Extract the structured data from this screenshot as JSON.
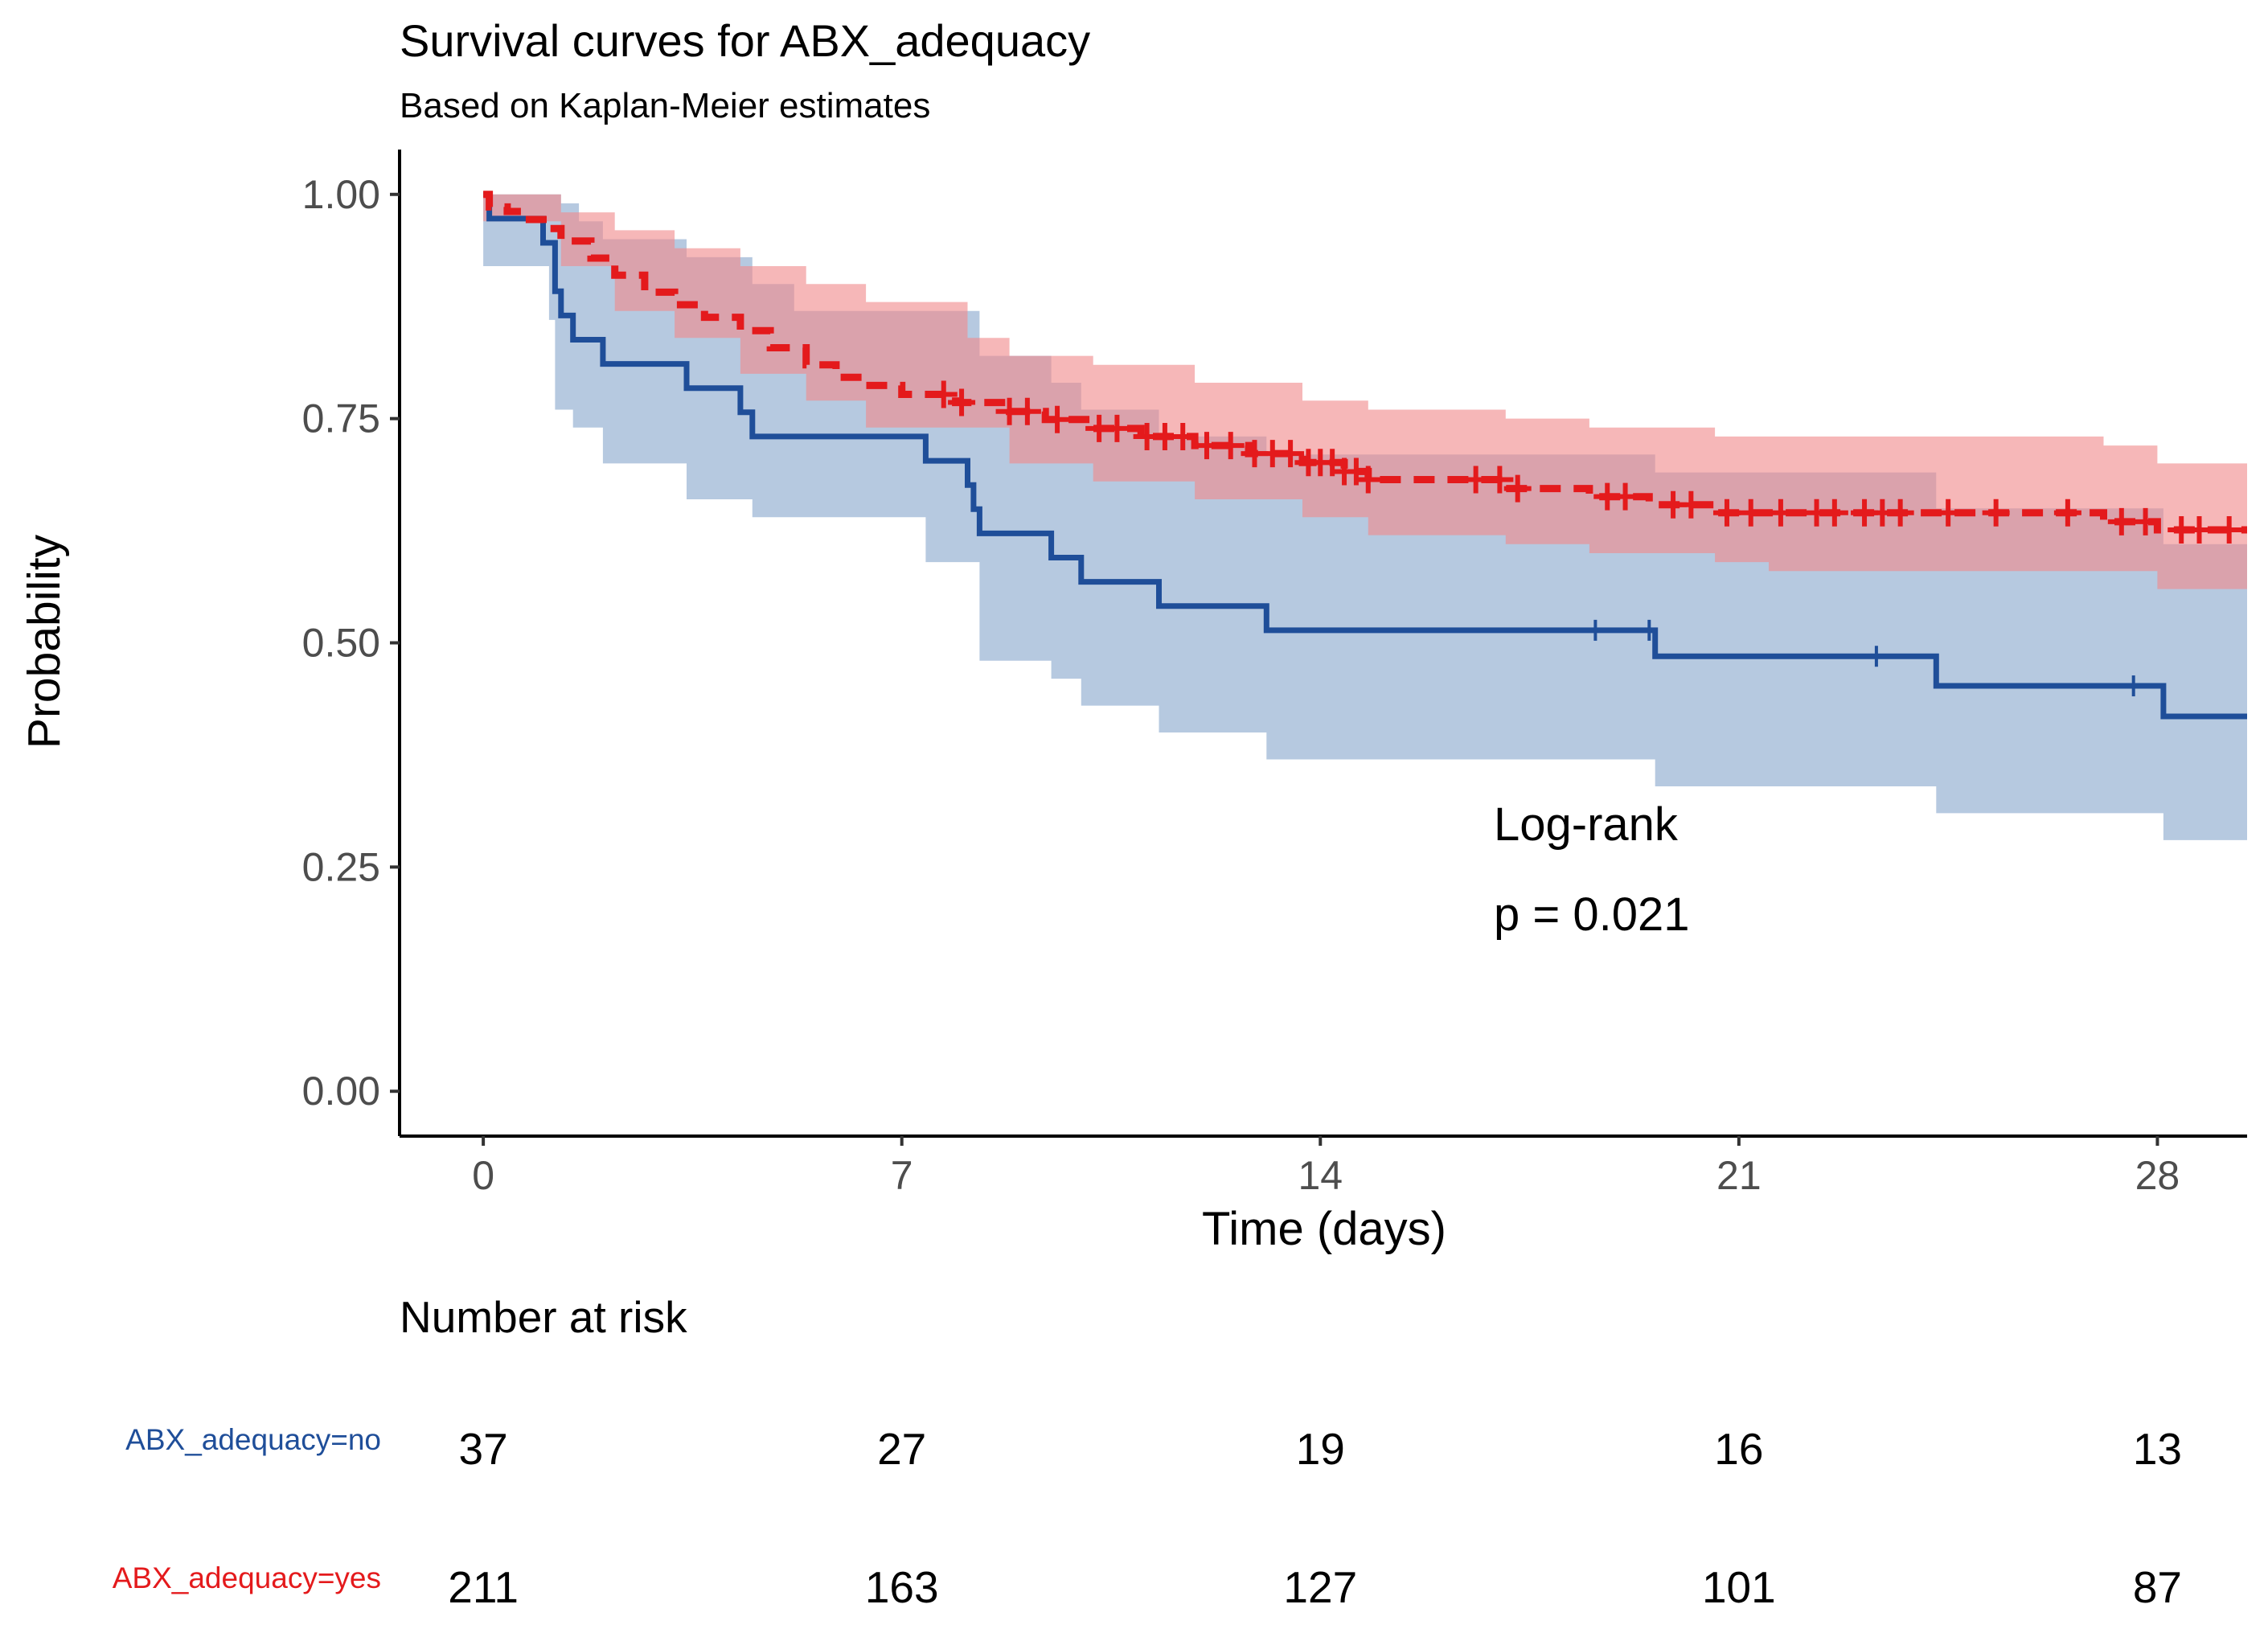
{
  "chart_data": {
    "type": "line",
    "title": "Survival curves for ABX_adequacy",
    "subtitle": "Based on Kaplan-Meier estimates",
    "xlabel": "Time (days)",
    "ylabel": "Probability",
    "xlim": [
      -1.4,
      29.5
    ],
    "ylim": [
      -0.05,
      1.05
    ],
    "xticks": [
      0,
      7,
      14,
      21,
      28
    ],
    "yticks": [
      0.0,
      0.25,
      0.5,
      0.75,
      1.0
    ],
    "xtick_labels": [
      "0",
      "7",
      "14",
      "21",
      "28"
    ],
    "ytick_labels": [
      "0.00",
      "0.25",
      "0.50",
      "0.75",
      "1.00"
    ],
    "annotation": {
      "line1": "Log-rank",
      "line2": "p = 0.021"
    },
    "series": [
      {
        "name": "ABX_adequacy=no",
        "color": "#1F4E99",
        "band_color": "#A9BFDB",
        "dash": false,
        "steps": [
          [
            0,
            1.0
          ],
          [
            0.1,
            0.973
          ],
          [
            0.4,
            0.973
          ],
          [
            1.0,
            0.946
          ],
          [
            1.2,
            0.892
          ],
          [
            1.3,
            0.865
          ],
          [
            1.5,
            0.838
          ],
          [
            2.0,
            0.811
          ],
          [
            3.4,
            0.784
          ],
          [
            4.3,
            0.757
          ],
          [
            4.5,
            0.73
          ],
          [
            7.4,
            0.703
          ],
          [
            8.1,
            0.676
          ],
          [
            8.2,
            0.649
          ],
          [
            8.3,
            0.622
          ],
          [
            9.5,
            0.595
          ],
          [
            10.0,
            0.568
          ],
          [
            11.3,
            0.541
          ],
          [
            13.1,
            0.514
          ],
          [
            19.6,
            0.485
          ],
          [
            24.3,
            0.452
          ],
          [
            28.1,
            0.418
          ],
          [
            29.5,
            0.418
          ]
        ],
        "lower": [
          [
            0,
            0.92
          ],
          [
            1.1,
            0.86
          ],
          [
            1.2,
            0.76
          ],
          [
            1.5,
            0.74
          ],
          [
            2.0,
            0.7
          ],
          [
            3.4,
            0.66
          ],
          [
            4.5,
            0.64
          ],
          [
            7.4,
            0.59
          ],
          [
            8.3,
            0.48
          ],
          [
            9.5,
            0.46
          ],
          [
            10.0,
            0.43
          ],
          [
            11.3,
            0.4
          ],
          [
            13.1,
            0.37
          ],
          [
            19.6,
            0.34
          ],
          [
            24.3,
            0.31
          ],
          [
            28.1,
            0.28
          ],
          [
            29.5,
            0.28
          ]
        ],
        "upper": [
          [
            0,
            1.0
          ],
          [
            1.3,
            0.99
          ],
          [
            1.6,
            0.97
          ],
          [
            2.0,
            0.95
          ],
          [
            3.4,
            0.93
          ],
          [
            4.5,
            0.9
          ],
          [
            5.2,
            0.87
          ],
          [
            7.4,
            0.87
          ],
          [
            8.3,
            0.82
          ],
          [
            9.5,
            0.79
          ],
          [
            10.0,
            0.76
          ],
          [
            11.3,
            0.73
          ],
          [
            13.1,
            0.71
          ],
          [
            19.6,
            0.69
          ],
          [
            24.3,
            0.65
          ],
          [
            28.1,
            0.61
          ],
          [
            29.5,
            0.61
          ]
        ],
        "censor_marks": [
          18.6,
          19.5,
          23.3,
          27.6
        ]
      },
      {
        "name": "ABX_adequacy=yes",
        "color": "#E41A1C",
        "band_color": "#F08A8C",
        "dash": true,
        "steps": [
          [
            0,
            1.0
          ],
          [
            0.1,
            0.986
          ],
          [
            0.4,
            0.981
          ],
          [
            0.7,
            0.972
          ],
          [
            1.0,
            0.962
          ],
          [
            1.3,
            0.948
          ],
          [
            1.8,
            0.929
          ],
          [
            2.2,
            0.91
          ],
          [
            2.7,
            0.891
          ],
          [
            3.2,
            0.877
          ],
          [
            3.7,
            0.863
          ],
          [
            4.3,
            0.848
          ],
          [
            4.8,
            0.829
          ],
          [
            5.4,
            0.81
          ],
          [
            5.9,
            0.796
          ],
          [
            6.4,
            0.787
          ],
          [
            7.0,
            0.777
          ],
          [
            7.9,
            0.768
          ],
          [
            8.8,
            0.758
          ],
          [
            9.4,
            0.749
          ],
          [
            10.2,
            0.739
          ],
          [
            11.0,
            0.73
          ],
          [
            11.9,
            0.72
          ],
          [
            12.8,
            0.711
          ],
          [
            13.7,
            0.701
          ],
          [
            14.4,
            0.691
          ],
          [
            14.8,
            0.682
          ],
          [
            17.1,
            0.672
          ],
          [
            18.5,
            0.663
          ],
          [
            19.5,
            0.654
          ],
          [
            20.6,
            0.645
          ],
          [
            27.1,
            0.635
          ],
          [
            28.0,
            0.626
          ],
          [
            29.5,
            0.626
          ]
        ],
        "lower": [
          [
            0,
            0.97
          ],
          [
            1.3,
            0.92
          ],
          [
            2.2,
            0.87
          ],
          [
            3.2,
            0.84
          ],
          [
            4.3,
            0.8
          ],
          [
            5.4,
            0.77
          ],
          [
            6.4,
            0.74
          ],
          [
            8.8,
            0.7
          ],
          [
            10.2,
            0.68
          ],
          [
            11.9,
            0.66
          ],
          [
            13.7,
            0.64
          ],
          [
            14.8,
            0.62
          ],
          [
            17.1,
            0.61
          ],
          [
            18.5,
            0.6
          ],
          [
            20.6,
            0.59
          ],
          [
            21.5,
            0.58
          ],
          [
            28.0,
            0.56
          ],
          [
            29.5,
            0.56
          ]
        ],
        "upper": [
          [
            0,
            1.0
          ],
          [
            1.3,
            0.98
          ],
          [
            2.2,
            0.96
          ],
          [
            3.2,
            0.94
          ],
          [
            4.3,
            0.92
          ],
          [
            5.4,
            0.9
          ],
          [
            6.4,
            0.88
          ],
          [
            8.1,
            0.84
          ],
          [
            8.8,
            0.82
          ],
          [
            10.2,
            0.81
          ],
          [
            11.9,
            0.79
          ],
          [
            13.7,
            0.77
          ],
          [
            14.8,
            0.76
          ],
          [
            17.1,
            0.75
          ],
          [
            18.5,
            0.74
          ],
          [
            20.6,
            0.73
          ],
          [
            27.1,
            0.72
          ],
          [
            28.0,
            0.7
          ],
          [
            29.5,
            0.7
          ]
        ],
        "censor_marks": [
          7.7,
          8.0,
          8.8,
          9.1,
          9.6,
          10.3,
          10.6,
          11.1,
          11.4,
          11.7,
          12.1,
          12.5,
          12.9,
          13.2,
          13.5,
          13.8,
          14.0,
          14.2,
          14.4,
          14.6,
          14.8,
          16.6,
          17.0,
          17.3,
          18.8,
          19.1,
          19.9,
          20.2,
          20.8,
          21.2,
          21.7,
          22.3,
          22.6,
          23.1,
          23.4,
          23.7,
          24.5,
          25.3,
          26.5,
          27.4,
          27.8,
          28.4,
          28.7,
          29.2
        ]
      }
    ],
    "risk_table": {
      "title": "Number at risk",
      "times": [
        0,
        7,
        14,
        21,
        28
      ],
      "rows": [
        {
          "label": "ABX_adequacy=no",
          "color": "#1F4E99",
          "values": [
            "37",
            "27",
            "19",
            "16",
            "13"
          ]
        },
        {
          "label": "ABX_adequacy=yes",
          "color": "#E41A1C",
          "values": [
            "211",
            "163",
            "127",
            "101",
            "87"
          ]
        }
      ]
    }
  }
}
